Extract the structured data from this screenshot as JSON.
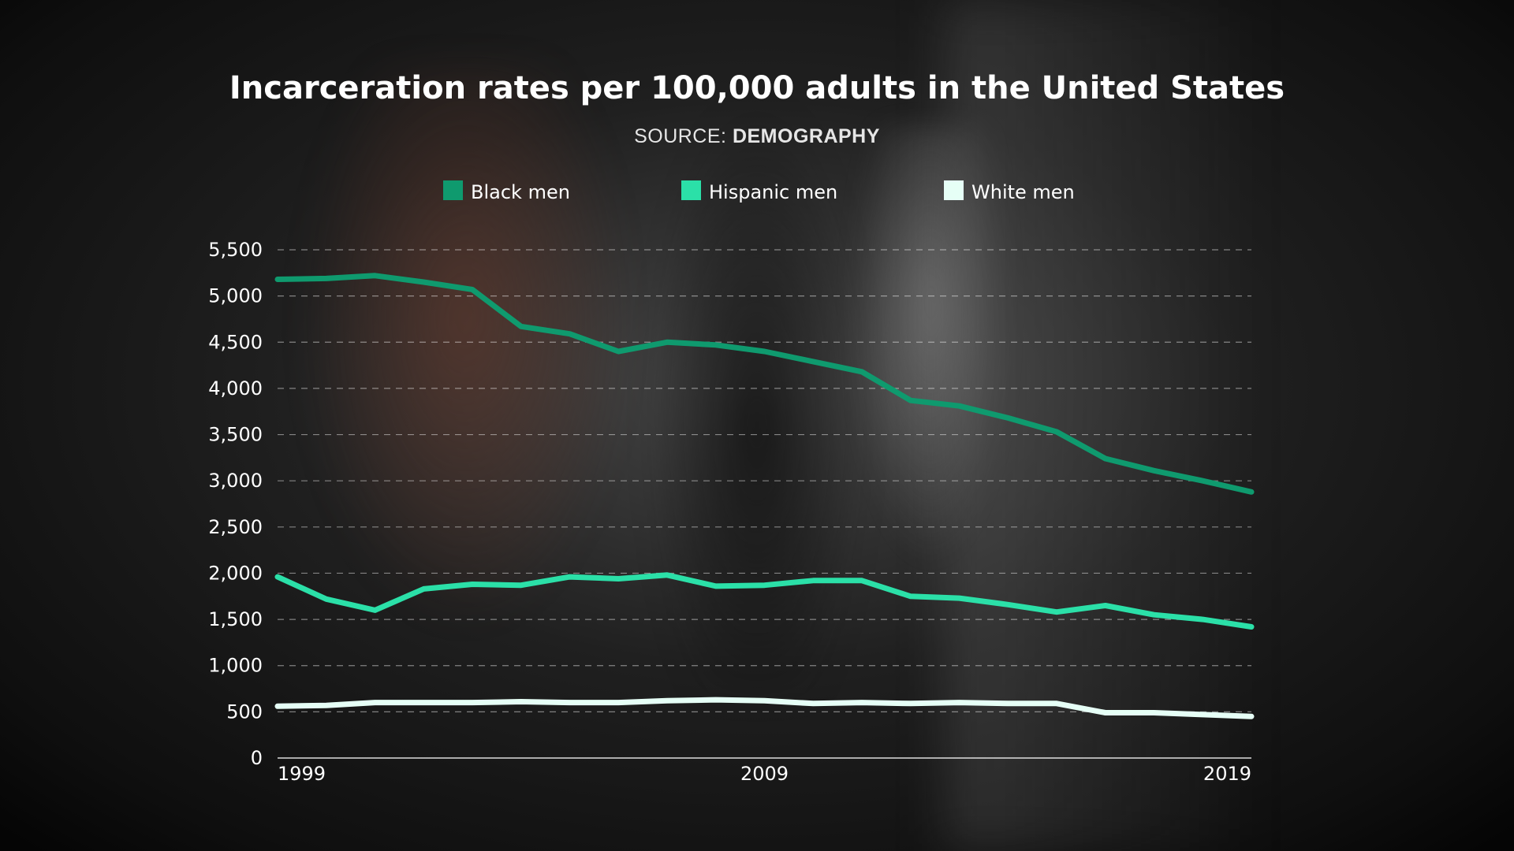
{
  "chart_data": {
    "type": "line",
    "title": "Incarceration rates per 100,000 adults in the United States",
    "subtitle_prefix": "SOURCE: ",
    "subtitle_source": "DEMOGRAPHY",
    "xlabel": "",
    "ylabel": "",
    "x": [
      1999,
      2000,
      2001,
      2002,
      2003,
      2004,
      2005,
      2006,
      2007,
      2008,
      2009,
      2010,
      2011,
      2012,
      2013,
      2014,
      2015,
      2016,
      2017,
      2018,
      2019
    ],
    "x_tick_labels": [
      "1999",
      "2009",
      "2019"
    ],
    "x_tick_values": [
      1999,
      2009,
      2019
    ],
    "xlim": [
      1999,
      2019
    ],
    "ylim": [
      0,
      5500
    ],
    "y_ticks": [
      0,
      500,
      1000,
      1500,
      2000,
      2500,
      3000,
      3500,
      4000,
      4500,
      5000,
      5500
    ],
    "y_tick_labels": [
      "0",
      "500",
      "1,000",
      "1,500",
      "2,000",
      "2,500",
      "3,000",
      "3,500",
      "4,000",
      "4,500",
      "5,000",
      "5,500"
    ],
    "grid": true,
    "legend_position": "top-center",
    "series": [
      {
        "name": "Black men",
        "color": "#0f9a6e",
        "values": [
          5180,
          5190,
          5220,
          5150,
          5070,
          4670,
          4590,
          4400,
          4500,
          4470,
          4400,
          4290,
          4180,
          3870,
          3810,
          3680,
          3530,
          3240,
          3110,
          3000,
          2880
        ]
      },
      {
        "name": "Hispanic men",
        "color": "#2be0a8",
        "values": [
          1960,
          1720,
          1600,
          1830,
          1880,
          1870,
          1960,
          1940,
          1980,
          1860,
          1870,
          1920,
          1920,
          1750,
          1730,
          1660,
          1580,
          1650,
          1550,
          1500,
          1420
        ]
      },
      {
        "name": "White men",
        "color": "#e6fff6",
        "values": [
          560,
          570,
          600,
          600,
          600,
          610,
          600,
          600,
          620,
          630,
          620,
          590,
          600,
          590,
          600,
          590,
          590,
          490,
          490,
          470,
          450
        ]
      }
    ]
  }
}
